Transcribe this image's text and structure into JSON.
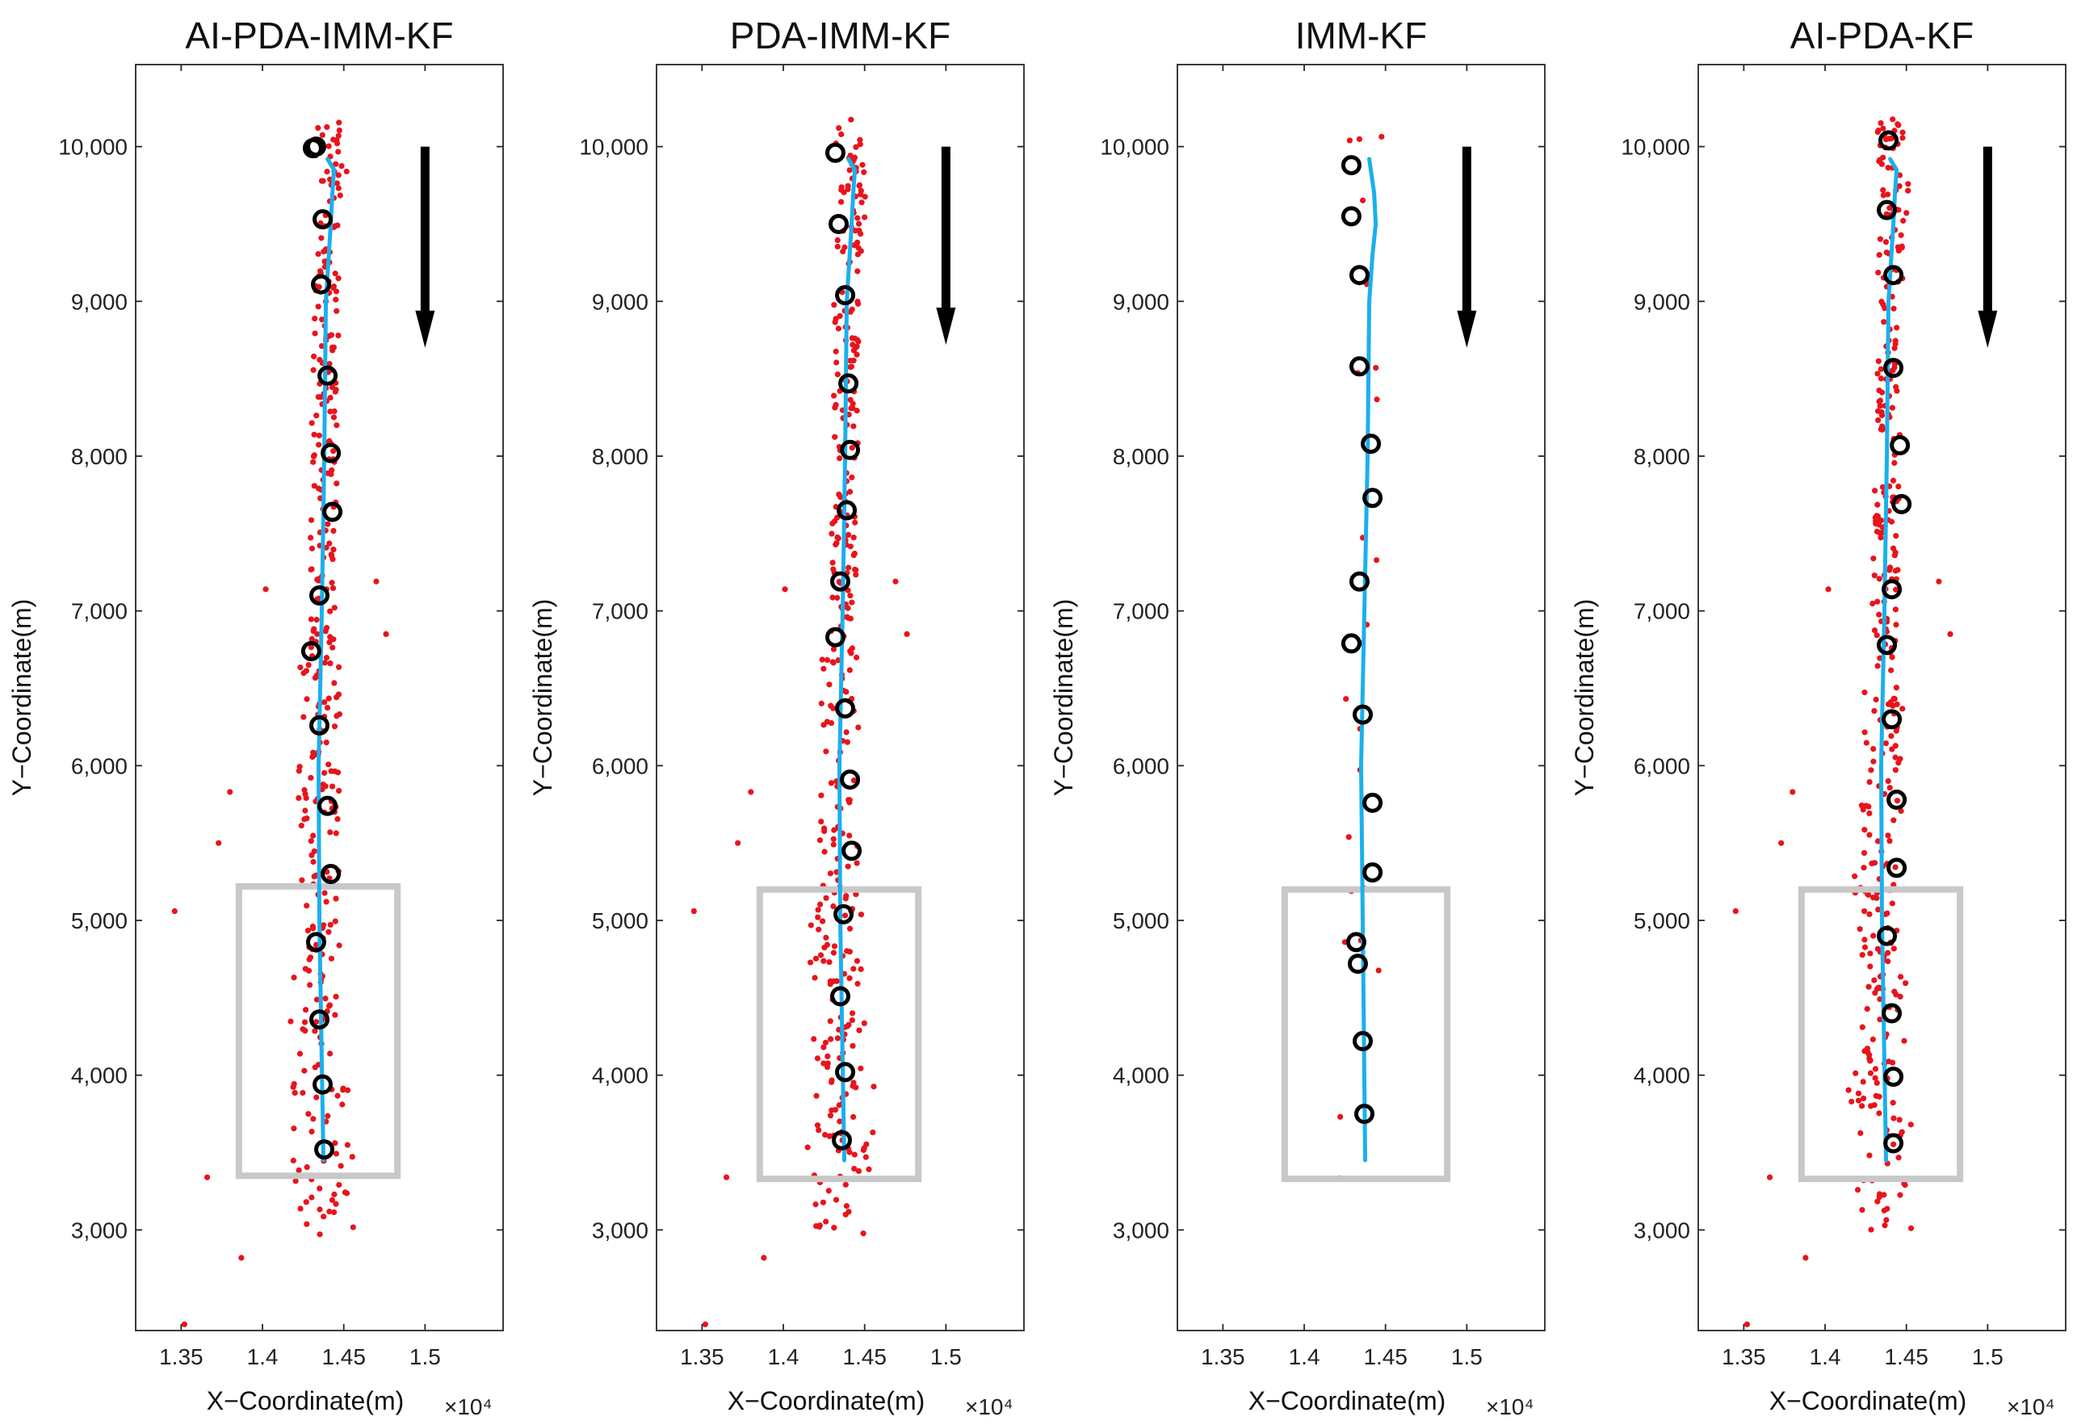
{
  "figure": {
    "exponent_label": "×10⁴"
  },
  "chart_data": [
    {
      "type": "scatter",
      "title": "AI-PDA-IMM-KF",
      "xlabel": "X−Coordinate(m)",
      "ylabel": "Y−Coordinate(m)",
      "xlim": [
        1.322,
        1.548
      ],
      "ylim": [
        2350,
        10530
      ],
      "xticks": [
        1.35,
        1.4,
        1.45,
        1.5
      ],
      "xtick_labels": [
        "1.35",
        "1.4",
        "1.45",
        "1.5"
      ],
      "yticks": [
        3000,
        4000,
        5000,
        6000,
        7000,
        8000,
        9000,
        10000
      ],
      "ytick_labels": [
        "3,000",
        "4,000",
        "5,000",
        "6,000",
        "7,000",
        "8,000",
        "9,000",
        "10,000"
      ],
      "x_multiplier": "×10⁴",
      "track": {
        "x": [
          1.4375,
          1.435,
          1.4345,
          1.4365,
          1.438,
          1.439,
          1.442,
          1.443,
          1.444,
          1.44
        ],
        "y": [
          3450,
          5000,
          6000,
          7000,
          8000,
          9000,
          9500,
          9700,
          9850,
          9920
        ]
      },
      "estimates": {
        "x": [
          1.438,
          1.437,
          1.435,
          1.433,
          1.442,
          1.44,
          1.435,
          1.43,
          1.435,
          1.443,
          1.442,
          1.44,
          1.436,
          1.437,
          1.431,
          1.433
        ],
        "y": [
          3520,
          3940,
          4360,
          4860,
          5300,
          5740,
          6260,
          6740,
          7100,
          7640,
          8020,
          8520,
          9110,
          9530,
          9990,
          10000
        ]
      },
      "clutter": {
        "seed": 11,
        "count": 360,
        "outliers": [
          [
            1.346,
            5060
          ],
          [
            1.352,
            2390
          ],
          [
            1.373,
            5500
          ],
          [
            1.366,
            3340
          ],
          [
            1.38,
            5830
          ],
          [
            1.387,
            2820
          ],
          [
            1.402,
            7140
          ],
          [
            1.476,
            6850
          ],
          [
            1.47,
            7190
          ]
        ]
      },
      "region_box": {
        "x": [
          1.3855,
          1.483
        ],
        "y": [
          3350,
          5220
        ]
      },
      "arrow": {
        "x": 1.5,
        "y_start": 10000,
        "y_end": 8700
      }
    },
    {
      "type": "scatter",
      "title": "PDA-IMM-KF",
      "xlabel": "X−Coordinate(m)",
      "ylabel": "Y−Coordinate(m)",
      "xlim": [
        1.322,
        1.548
      ],
      "ylim": [
        2350,
        10530
      ],
      "xticks": [
        1.35,
        1.4,
        1.45,
        1.5
      ],
      "xtick_labels": [
        "1.35",
        "1.4",
        "1.45",
        "1.5"
      ],
      "yticks": [
        3000,
        4000,
        5000,
        6000,
        7000,
        8000,
        9000,
        10000
      ],
      "ytick_labels": [
        "3,000",
        "4,000",
        "5,000",
        "6,000",
        "7,000",
        "8,000",
        "9,000",
        "10,000"
      ],
      "x_multiplier": "×10⁴",
      "track": {
        "x": [
          1.4375,
          1.435,
          1.4345,
          1.4365,
          1.438,
          1.439,
          1.442,
          1.443,
          1.444,
          1.44
        ],
        "y": [
          3450,
          5000,
          6000,
          7000,
          8000,
          9000,
          9500,
          9700,
          9850,
          9920
        ]
      },
      "estimates": {
        "x": [
          1.436,
          1.438,
          1.435,
          1.437,
          1.442,
          1.441,
          1.438,
          1.432,
          1.435,
          1.439,
          1.441,
          1.44,
          1.438,
          1.434,
          1.432
        ],
        "y": [
          3580,
          4020,
          4510,
          5040,
          5450,
          5910,
          6370,
          6830,
          7190,
          7650,
          8040,
          8470,
          9040,
          9500,
          9960
        ]
      },
      "clutter": {
        "seed": 29,
        "count": 360,
        "outliers": [
          [
            1.345,
            5060
          ],
          [
            1.352,
            2390
          ],
          [
            1.372,
            5500
          ],
          [
            1.365,
            3340
          ],
          [
            1.38,
            5830
          ],
          [
            1.388,
            2820
          ],
          [
            1.401,
            7140
          ],
          [
            1.476,
            6850
          ],
          [
            1.469,
            7190
          ]
        ]
      },
      "region_box": {
        "x": [
          1.3855,
          1.483
        ],
        "y": [
          3330,
          5200
        ]
      },
      "arrow": {
        "x": 1.5,
        "y_start": 10000,
        "y_end": 8720
      }
    },
    {
      "type": "scatter",
      "title": "IMM-KF",
      "xlabel": "X−Coordinate(m)",
      "ylabel": "Y−Coordinate(m)",
      "xlim": [
        1.322,
        1.548
      ],
      "ylim": [
        2350,
        10530
      ],
      "xticks": [
        1.35,
        1.4,
        1.45,
        1.5
      ],
      "xtick_labels": [
        "1.35",
        "1.4",
        "1.45",
        "1.5"
      ],
      "yticks": [
        3000,
        4000,
        5000,
        6000,
        7000,
        8000,
        9000,
        10000
      ],
      "ytick_labels": [
        "3,000",
        "4,000",
        "5,000",
        "6,000",
        "7,000",
        "8,000",
        "9,000",
        "10,000"
      ],
      "x_multiplier": "×10⁴",
      "track": {
        "x": [
          1.4375,
          1.436,
          1.435,
          1.437,
          1.439,
          1.44,
          1.442,
          1.444,
          1.443,
          1.44
        ],
        "y": [
          3450,
          5000,
          6000,
          7000,
          8000,
          9000,
          9300,
          9500,
          9700,
          9920
        ]
      },
      "estimates": {
        "x": [
          1.437,
          1.436,
          1.433,
          1.432,
          1.442,
          1.442,
          1.436,
          1.429,
          1.434,
          1.442,
          1.441,
          1.434,
          1.434,
          1.429,
          1.429
        ],
        "y": [
          3750,
          4220,
          4720,
          4860,
          5310,
          5760,
          6330,
          6790,
          7190,
          7730,
          8080,
          8580,
          9170,
          9550,
          9880
        ]
      },
      "clutter": {
        "seed": 7,
        "count": 22,
        "outliers": [
          [
            1.425,
            4860
          ],
          [
            1.428,
            10040
          ]
        ]
      },
      "region_box": {
        "x": [
          1.388,
          1.488
        ],
        "y": [
          3330,
          5200
        ]
      },
      "arrow": {
        "x": 1.5,
        "y_start": 10000,
        "y_end": 8700
      }
    },
    {
      "type": "scatter",
      "title": "AI-PDA-KF",
      "xlabel": "X−Coordinate(m)",
      "ylabel": "Y−Coordinate(m)",
      "xlim": [
        1.322,
        1.548
      ],
      "ylim": [
        2350,
        10530
      ],
      "xticks": [
        1.35,
        1.4,
        1.45,
        1.5
      ],
      "xtick_labels": [
        "1.35",
        "1.4",
        "1.45",
        "1.5"
      ],
      "yticks": [
        3000,
        4000,
        5000,
        6000,
        7000,
        8000,
        9000,
        10000
      ],
      "ytick_labels": [
        "3,000",
        "4,000",
        "5,000",
        "6,000",
        "7,000",
        "8,000",
        "9,000",
        "10,000"
      ],
      "x_multiplier": "×10⁴",
      "track": {
        "x": [
          1.4375,
          1.435,
          1.4345,
          1.4365,
          1.438,
          1.439,
          1.442,
          1.443,
          1.444,
          1.44
        ],
        "y": [
          3450,
          5000,
          6000,
          7000,
          8000,
          9000,
          9500,
          9700,
          9850,
          9920
        ]
      },
      "estimates": {
        "x": [
          1.442,
          1.442,
          1.441,
          1.438,
          1.444,
          1.444,
          1.441,
          1.438,
          1.441,
          1.447,
          1.446,
          1.442,
          1.442,
          1.438,
          1.439
        ],
        "y": [
          3560,
          3990,
          4400,
          4900,
          5340,
          5780,
          6300,
          6780,
          7140,
          7690,
          8070,
          8570,
          9170,
          9590,
          10040
        ]
      },
      "clutter": {
        "seed": 43,
        "count": 360,
        "outliers": [
          [
            1.345,
            5060
          ],
          [
            1.352,
            2390
          ],
          [
            1.373,
            5500
          ],
          [
            1.366,
            3340
          ],
          [
            1.38,
            5830
          ],
          [
            1.388,
            2820
          ],
          [
            1.402,
            7140
          ],
          [
            1.477,
            6850
          ],
          [
            1.47,
            7190
          ]
        ]
      },
      "region_box": {
        "x": [
          1.3855,
          1.483
        ],
        "y": [
          3330,
          5200
        ]
      },
      "arrow": {
        "x": 1.5,
        "y_start": 10000,
        "y_end": 8700
      }
    }
  ]
}
